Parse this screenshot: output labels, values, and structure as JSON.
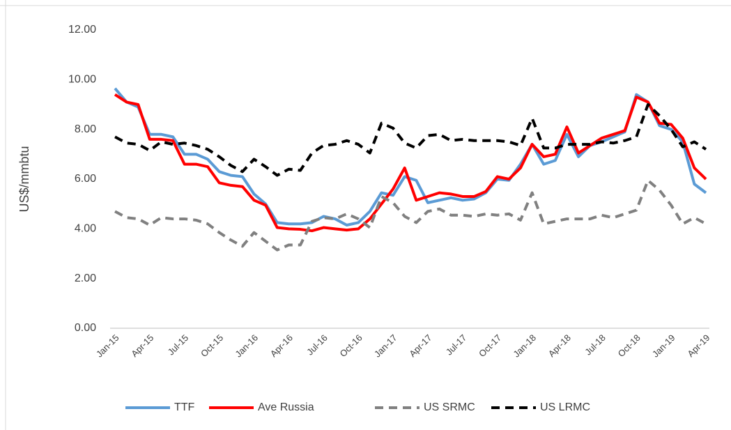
{
  "chart_data": {
    "type": "line",
    "y_label": "US$/mmbtu",
    "categories": [
      "Jan-15",
      null,
      null,
      "Apr-15",
      null,
      null,
      "Jul-15",
      null,
      null,
      "Oct-15",
      null,
      null,
      "Jan-16",
      null,
      null,
      "Apr-16",
      null,
      null,
      "Jul-16",
      null,
      null,
      "Oct-16",
      null,
      null,
      "Jan-17",
      null,
      null,
      "Apr-17",
      null,
      null,
      "Jul-17",
      null,
      null,
      "Oct-17",
      null,
      null,
      "Jan-18",
      null,
      null,
      "Apr-18",
      null,
      null,
      "Jul-18",
      null,
      null,
      "Oct-18",
      null,
      null,
      "Jan-19",
      null,
      null,
      "Apr-19"
    ],
    "series": [
      {
        "name": "TTF",
        "color": "#5b9bd5",
        "dash": "solid",
        "values": [
          9.65,
          9.1,
          8.9,
          7.8,
          7.8,
          7.7,
          7.0,
          7.0,
          6.8,
          6.3,
          6.15,
          6.1,
          5.4,
          5.0,
          4.25,
          4.2,
          4.2,
          4.25,
          4.5,
          4.4,
          4.15,
          4.25,
          4.7,
          5.45,
          5.35,
          6.1,
          5.95,
          5.05,
          5.15,
          5.25,
          5.15,
          5.2,
          5.45,
          6.0,
          5.95,
          6.6,
          7.4,
          6.6,
          6.75,
          7.8,
          6.9,
          7.35,
          7.5,
          7.7,
          7.9,
          9.4,
          9.1,
          8.15,
          8.0,
          7.5,
          5.8,
          5.45
        ]
      },
      {
        "name": "Ave Russia",
        "color": "#ff0000",
        "dash": "solid",
        "values": [
          9.4,
          9.1,
          9.0,
          7.6,
          7.6,
          7.55,
          6.6,
          6.6,
          6.5,
          5.85,
          5.75,
          5.7,
          5.15,
          4.95,
          4.05,
          4.0,
          3.98,
          3.92,
          4.05,
          4.0,
          3.95,
          4.0,
          4.4,
          5.0,
          5.6,
          6.45,
          5.15,
          5.3,
          5.45,
          5.4,
          5.3,
          5.3,
          5.5,
          6.1,
          6.0,
          6.45,
          7.4,
          6.9,
          7.0,
          8.1,
          7.05,
          7.35,
          7.65,
          7.8,
          7.95,
          9.3,
          9.1,
          8.25,
          8.2,
          7.65,
          6.45,
          6.0
        ]
      },
      {
        "name": "US SRMC",
        "color": "#808080",
        "dash": "dashed",
        "values": [
          4.7,
          4.45,
          4.4,
          4.15,
          4.45,
          4.4,
          4.4,
          4.35,
          4.2,
          3.85,
          3.55,
          3.3,
          3.85,
          3.5,
          3.15,
          3.35,
          3.35,
          4.3,
          4.45,
          4.4,
          4.6,
          4.4,
          4.05,
          5.3,
          5.05,
          4.5,
          4.25,
          4.7,
          4.8,
          4.55,
          4.55,
          4.5,
          4.6,
          4.55,
          4.6,
          4.35,
          5.45,
          4.2,
          4.3,
          4.4,
          4.4,
          4.4,
          4.55,
          4.45,
          4.6,
          4.75,
          5.95,
          5.55,
          4.95,
          4.2,
          4.45,
          4.2
        ]
      },
      {
        "name": "US LRMC",
        "color": "#000000",
        "dash": "dashed",
        "values": [
          7.7,
          7.45,
          7.4,
          7.15,
          7.5,
          7.4,
          7.45,
          7.35,
          7.2,
          6.9,
          6.55,
          6.3,
          6.8,
          6.5,
          6.15,
          6.4,
          6.35,
          7.05,
          7.35,
          7.4,
          7.55,
          7.4,
          7.05,
          8.25,
          8.05,
          7.45,
          7.25,
          7.75,
          7.8,
          7.55,
          7.6,
          7.55,
          7.55,
          7.55,
          7.5,
          7.35,
          8.45,
          7.25,
          7.25,
          7.4,
          7.4,
          7.4,
          7.5,
          7.45,
          7.55,
          7.7,
          9.0,
          8.55,
          8.0,
          7.3,
          7.5,
          7.2
        ]
      }
    ],
    "ylim": [
      0,
      12
    ],
    "yticks": [
      {
        "value": 0,
        "label": "0.00"
      },
      {
        "value": 2,
        "label": "2.00"
      },
      {
        "value": 4,
        "label": "4.00"
      },
      {
        "value": 6,
        "label": "6.00"
      },
      {
        "value": 8,
        "label": "8.00"
      },
      {
        "value": 10,
        "label": "10.00"
      },
      {
        "value": 12,
        "label": "12.00"
      }
    ],
    "grid": false,
    "legend": "bottom"
  }
}
